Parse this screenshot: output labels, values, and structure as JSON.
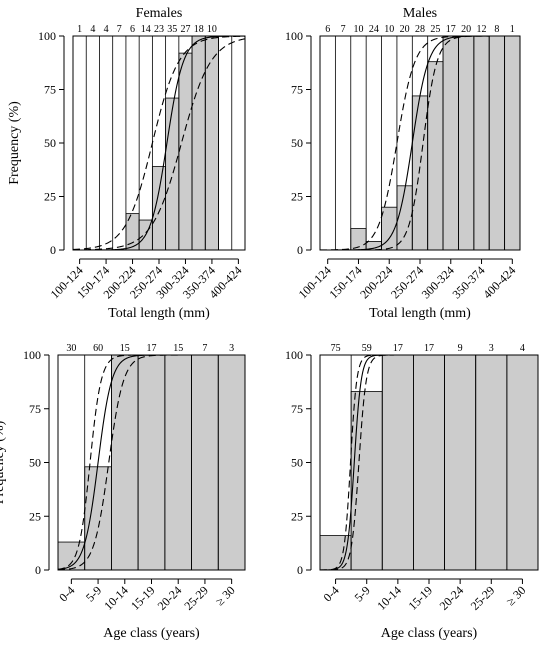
{
  "chart_data": [
    {
      "type": "bar",
      "title": "Females",
      "xlabel": "Total length (mm)",
      "ylabel": "Frequency (%)",
      "ylim": [
        0,
        100
      ],
      "yticks": [
        "0",
        "25",
        "50",
        "75",
        "100"
      ],
      "categories": [
        "100-124",
        "125-149",
        "150-174",
        "175-199",
        "200-224",
        "225-249",
        "250-274",
        "275-299",
        "300-324",
        "325-349",
        "350-374",
        "375-399",
        "400-424"
      ],
      "xticks_shown": [
        "100-124",
        "150-174",
        "200-224",
        "250-274",
        "300-324",
        "350-374",
        "400-424"
      ],
      "counts": [
        "1",
        "4",
        "4",
        "7",
        "6",
        "14",
        "23",
        "35",
        "27",
        "18",
        "10",
        "",
        ""
      ],
      "values": [
        0,
        0,
        0,
        0,
        17,
        14,
        39,
        71,
        92,
        100,
        100,
        0,
        0
      ],
      "curve": {
        "center": 7.1,
        "slope": 1.6
      },
      "ci_lower": {
        "center": 6.0,
        "slope": 1.0
      },
      "ci_upper": {
        "center": 8.2,
        "slope": 0.9
      },
      "grid": false
    },
    {
      "type": "bar",
      "title": "Males",
      "xlabel": "Total length (mm)",
      "ylabel": "",
      "ylim": [
        0,
        100
      ],
      "yticks": [
        "0",
        "25",
        "50",
        "75",
        "100"
      ],
      "categories": [
        "100-124",
        "125-149",
        "150-174",
        "175-199",
        "200-224",
        "225-249",
        "250-274",
        "275-299",
        "300-324",
        "325-349",
        "350-374",
        "375-399",
        "400-424"
      ],
      "xticks_shown": [
        "100-124",
        "150-174",
        "200-224",
        "250-274",
        "300-324",
        "350-374",
        "400-424"
      ],
      "counts": [
        "6",
        "7",
        "10",
        "24",
        "10",
        "20",
        "28",
        "25",
        "17",
        "20",
        "12",
        "8",
        "1"
      ],
      "values": [
        0,
        0,
        10,
        4,
        20,
        30,
        72,
        88,
        100,
        100,
        100,
        100,
        100
      ],
      "curve": {
        "center": 6.0,
        "slope": 1.9
      },
      "ci_lower": {
        "center": 5.0,
        "slope": 1.7
      },
      "ci_upper": {
        "center": 6.7,
        "slope": 2.2
      },
      "grid": false
    },
    {
      "type": "bar",
      "title": "",
      "xlabel": "Age class (years)",
      "ylabel": "Frequency (%)",
      "ylim": [
        0,
        100
      ],
      "yticks": [
        "0",
        "25",
        "50",
        "75",
        "100"
      ],
      "categories": [
        "0-4",
        "5-9",
        "10-14",
        "15-19",
        "20-24",
        "25-29",
        "≥ 30"
      ],
      "xticks_shown": [
        "0-4",
        "5-9",
        "10-14",
        "15-19",
        "20-24",
        "25-29",
        "≥ 30"
      ],
      "counts": [
        "30",
        "60",
        "15",
        "17",
        "15",
        "7",
        "3"
      ],
      "values": [
        13,
        48,
        100,
        100,
        100,
        100,
        100
      ],
      "curve": {
        "center": 1.5,
        "slope": 3.9
      },
      "ci_lower": {
        "center": 1.2,
        "slope": 4.8
      },
      "ci_upper": {
        "center": 1.9,
        "slope": 3.6
      },
      "grid": false
    },
    {
      "type": "bar",
      "title": "",
      "xlabel": "Age class (years)",
      "ylabel": "",
      "ylim": [
        0,
        100
      ],
      "yticks": [
        "0",
        "25",
        "50",
        "75",
        "100"
      ],
      "categories": [
        "0-4",
        "5-9",
        "10-14",
        "15-19",
        "20-24",
        "25-29",
        "≥ 30"
      ],
      "xticks_shown": [
        "0-4",
        "5-9",
        "10-14",
        "15-19",
        "20-24",
        "25-29",
        "≥ 30"
      ],
      "counts": [
        "75",
        "59",
        "17",
        "17",
        "9",
        "3",
        "4"
      ],
      "values": [
        16,
        83,
        100,
        100,
        100,
        100,
        100
      ],
      "curve": {
        "center": 1.1,
        "slope": 9.0
      },
      "ci_lower": {
        "center": 0.98,
        "slope": 10.0
      },
      "ci_upper": {
        "center": 1.25,
        "slope": 8.5
      },
      "grid": false
    }
  ],
  "colors": {
    "bar_fill": "#cccccc",
    "stroke": "#000000",
    "background": "#ffffff"
  }
}
